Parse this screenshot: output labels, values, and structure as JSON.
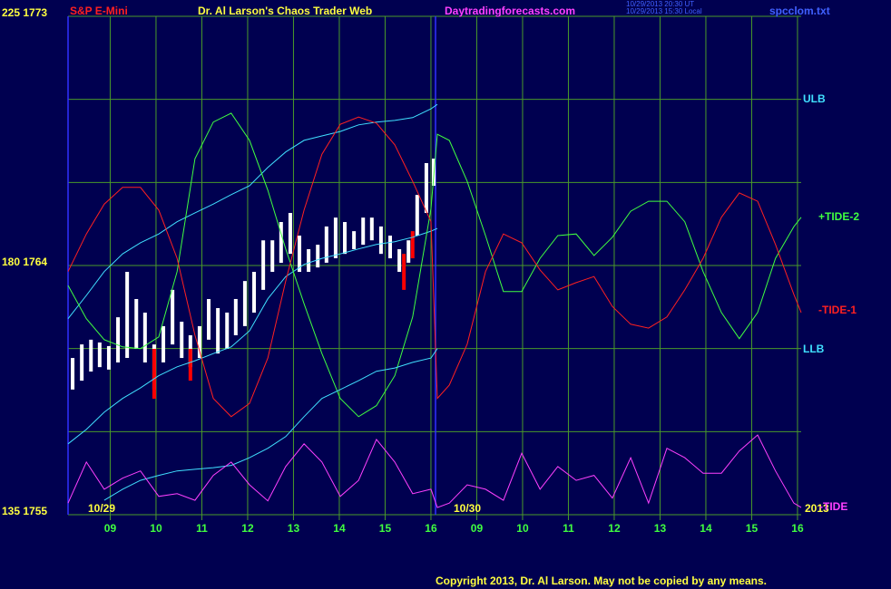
{
  "chart_data": {
    "type": "line",
    "symbol": "S&P E-Mini",
    "title": "Dr. Al Larson's Chaos Trader Web",
    "site": "Daytradingforecasts.com",
    "stamp": [
      "10/29/2013 20:30 UT",
      "10/29/2013 15:30 Local"
    ],
    "file": "spcclom.txt",
    "copyright": "Copyright 2013, Dr. Al Larson. May not be copied by any means.",
    "date_labels": [
      "10/29",
      "10/30"
    ],
    "year": "2013",
    "grid": true,
    "xlim": [
      8.08,
      24.08
    ],
    "xticks": [
      {
        "value": 9,
        "label": "09"
      },
      10,
      11,
      12,
      13,
      14,
      15,
      16,
      {
        "value": 17,
        "label": "09"
      },
      {
        "value": 18,
        "label": "10"
      },
      {
        "value": 19,
        "label": "11"
      },
      {
        "value": 20,
        "label": "12"
      },
      {
        "value": 21,
        "label": "13"
      },
      {
        "value": 22,
        "label": "14"
      },
      {
        "value": 23,
        "label": "15"
      },
      {
        "value": 24,
        "label": "16"
      }
    ],
    "ylim": [
      135,
      225
    ],
    "yticks": [
      {
        "value": 225,
        "label": "225 1773"
      },
      {
        "value": 180,
        "label": "180 1764"
      },
      {
        "value": 135,
        "label": "135 1755"
      }
    ],
    "ygrid": [
      135,
      150,
      165,
      180,
      195,
      210,
      225
    ],
    "y2lim": [
      1755,
      1773
    ],
    "series": [
      {
        "name": "ULB",
        "color": "#40e0ff",
        "x": [
          8.08,
          8.48,
          8.87,
          9.27,
          9.66,
          10.06,
          10.46,
          10.85,
          11.25,
          11.64,
          12.04,
          12.44,
          12.83,
          13.23,
          13.62,
          14.02,
          14.42,
          14.81,
          15.21,
          15.6,
          16.0,
          16.14
        ],
        "values": [
          170.4,
          174.6,
          178.9,
          182.1,
          184.1,
          185.7,
          187.9,
          189.5,
          191.1,
          192.8,
          194.4,
          197.7,
          200.5,
          202.6,
          203.4,
          204.2,
          205.4,
          205.9,
          206.2,
          206.7,
          208.3,
          209.1
        ]
      },
      {
        "color": "#40e0ff",
        "x": [
          8.08,
          8.48,
          8.87,
          9.27,
          9.66,
          10.06,
          10.46,
          10.85,
          11.25,
          11.64,
          12.04,
          12.44,
          12.83,
          13.23,
          13.62,
          14.02,
          14.42,
          14.81,
          15.21,
          15.6,
          16.0,
          16.14
        ],
        "values": [
          147.8,
          150.4,
          153.5,
          156.0,
          157.9,
          160.1,
          161.7,
          162.8,
          164.1,
          165.3,
          168.2,
          174.0,
          178.0,
          180.2,
          181.3,
          182.1,
          183.0,
          183.8,
          184.3,
          185.1,
          186.2,
          186.7
        ]
      },
      {
        "name": "+TIDE-2",
        "color": "#40ff40",
        "x": [
          8.08,
          8.48,
          8.87,
          9.27,
          9.66,
          10.06,
          10.46,
          10.85,
          11.25,
          11.64,
          12.04,
          12.44,
          12.83,
          13.23,
          13.62,
          14.02,
          14.42,
          14.81,
          15.21,
          15.6,
          16.0,
          16.14,
          16.4,
          16.79,
          17.19,
          17.58,
          17.98,
          18.38,
          18.77,
          19.17,
          19.56,
          19.96,
          20.36,
          20.75,
          21.15,
          21.54,
          21.94,
          22.34,
          22.73,
          23.13,
          23.52,
          23.92,
          24.08
        ],
        "values": [
          176.4,
          170.4,
          166.6,
          165.3,
          165.0,
          167.1,
          178.9,
          199.3,
          205.9,
          207.5,
          202.6,
          193.6,
          183.0,
          173.1,
          164.1,
          156.0,
          152.7,
          154.7,
          160.1,
          170.7,
          190.3,
          203.7,
          202.6,
          195.2,
          185.4,
          175.3,
          175.3,
          181.3,
          185.4,
          185.7,
          181.8,
          185.1,
          189.8,
          191.6,
          191.6,
          187.9,
          178.9,
          171.5,
          166.8,
          171.5,
          181.3,
          187.0,
          188.7
        ]
      },
      {
        "name": "-TIDE-1",
        "color": "#ff2020",
        "x": [
          8.08,
          8.48,
          8.87,
          9.27,
          9.66,
          10.06,
          10.46,
          10.85,
          11.25,
          11.64,
          12.04,
          12.44,
          12.83,
          13.23,
          13.62,
          14.02,
          14.42,
          14.81,
          15.21,
          15.6,
          16.0,
          16.14,
          16.4,
          16.79,
          17.19,
          17.58,
          17.98,
          18.38,
          18.77,
          19.17,
          19.56,
          19.96,
          20.36,
          20.75,
          21.15,
          21.54,
          21.94,
          22.34,
          22.73,
          23.13,
          23.52,
          23.92,
          24.08
        ],
        "values": [
          178.9,
          185.7,
          191.1,
          194.1,
          194.1,
          190.0,
          181.3,
          167.4,
          156.0,
          152.7,
          155.1,
          163.3,
          177.2,
          190.0,
          200.1,
          205.5,
          206.8,
          205.7,
          201.8,
          195.2,
          187.9,
          156.0,
          158.4,
          165.8,
          178.9,
          185.7,
          184.1,
          179.2,
          175.6,
          176.9,
          178.0,
          172.6,
          169.4,
          168.7,
          170.7,
          175.6,
          181.3,
          188.7,
          193.1,
          191.6,
          183.8,
          174.8,
          171.5
        ]
      },
      {
        "name": "LLB",
        "color": "#40e0ff",
        "x": [
          8.87,
          9.27,
          9.66,
          10.06,
          10.46,
          10.85,
          11.25,
          11.64,
          12.04,
          12.44,
          12.83,
          13.23,
          13.62,
          14.02,
          14.42,
          14.81,
          15.21,
          15.6,
          16.0,
          16.14
        ],
        "values": [
          137.6,
          139.6,
          141.2,
          142.1,
          142.9,
          143.2,
          143.5,
          143.9,
          145.3,
          147.0,
          149.1,
          152.7,
          156.0,
          157.6,
          159.2,
          160.9,
          161.5,
          162.5,
          163.3,
          165.0
        ]
      },
      {
        "name": "-TIDE",
        "color": "#ff40ff",
        "x": [
          8.08,
          8.48,
          8.87,
          9.27,
          9.66,
          10.06,
          10.46,
          10.85,
          11.25,
          11.64,
          12.04,
          12.44,
          12.83,
          13.23,
          13.62,
          14.02,
          14.42,
          14.81,
          15.21,
          15.6,
          16.0,
          16.14,
          16.4,
          16.79,
          17.19,
          17.58,
          17.98,
          18.38,
          18.77,
          19.17,
          19.56,
          19.96,
          20.36,
          20.75,
          21.15,
          21.54,
          21.94,
          22.34,
          22.73,
          23.13,
          23.52,
          23.92,
          24.08
        ],
        "values": [
          137.1,
          144.5,
          139.6,
          141.6,
          142.9,
          138.3,
          138.8,
          137.6,
          142.1,
          144.5,
          140.4,
          137.5,
          143.7,
          147.8,
          144.5,
          138.3,
          141.2,
          148.6,
          144.5,
          138.8,
          139.6,
          136.3,
          137.1,
          140.4,
          139.6,
          137.6,
          146.1,
          139.6,
          143.7,
          141.2,
          142.1,
          138.0,
          145.3,
          137.1,
          147.0,
          145.3,
          142.5,
          142.5,
          146.5,
          149.4,
          142.9,
          137.1,
          136.3
        ]
      }
    ],
    "bars": [
      {
        "color": "#ffffff",
        "x": [
          8.18,
          8.38,
          8.58,
          8.77,
          8.97,
          9.17,
          9.37,
          9.57,
          9.76,
          9.96,
          10.16,
          10.36,
          10.56,
          10.75,
          10.95,
          11.15,
          11.35,
          11.55,
          11.74,
          11.94,
          12.14,
          12.34,
          12.54,
          12.73,
          12.93,
          13.13,
          13.33,
          13.53,
          13.72,
          13.92,
          14.12,
          14.32,
          14.52,
          14.71,
          14.91,
          15.11,
          15.31,
          15.51,
          15.7,
          15.9,
          16.06
        ],
        "high": [
          1760.66,
          1761.15,
          1761.32,
          1761.22,
          1761.09,
          1762.13,
          1763.77,
          1762.79,
          1762.3,
          1761.15,
          1761.81,
          1763.12,
          1761.97,
          1761.48,
          1761.81,
          1762.79,
          1762.46,
          1762.3,
          1762.79,
          1763.44,
          1763.77,
          1764.91,
          1764.91,
          1765.57,
          1765.9,
          1765.08,
          1764.59,
          1764.75,
          1765.41,
          1765.73,
          1765.57,
          1765.24,
          1765.73,
          1765.73,
          1765.41,
          1765.08,
          1764.59,
          1764.91,
          1766.55,
          1767.7,
          1767.86
        ],
        "low": [
          1759.52,
          1759.84,
          1760.17,
          1760.33,
          1760.24,
          1760.5,
          1760.66,
          1760.99,
          1760.5,
          1759.52,
          1760.5,
          1761.15,
          1760.66,
          1760.33,
          1760.66,
          1761.32,
          1760.82,
          1760.99,
          1761.48,
          1761.81,
          1762.3,
          1763.12,
          1763.77,
          1764.1,
          1764.42,
          1763.77,
          1763.77,
          1763.93,
          1764.1,
          1764.26,
          1764.42,
          1764.59,
          1764.75,
          1764.91,
          1764.42,
          1764.26,
          1763.77,
          1764.1,
          1765.08,
          1765.9,
          1766.88
        ]
      },
      {
        "color": "#ff0000",
        "x": [
          9.96,
          10.75,
          15.41,
          15.6
        ],
        "high": [
          1760.99,
          1760.99,
          1764.42,
          1765.24
        ],
        "low": [
          1759.19,
          1759.84,
          1763.12,
          1764.26
        ]
      }
    ]
  }
}
